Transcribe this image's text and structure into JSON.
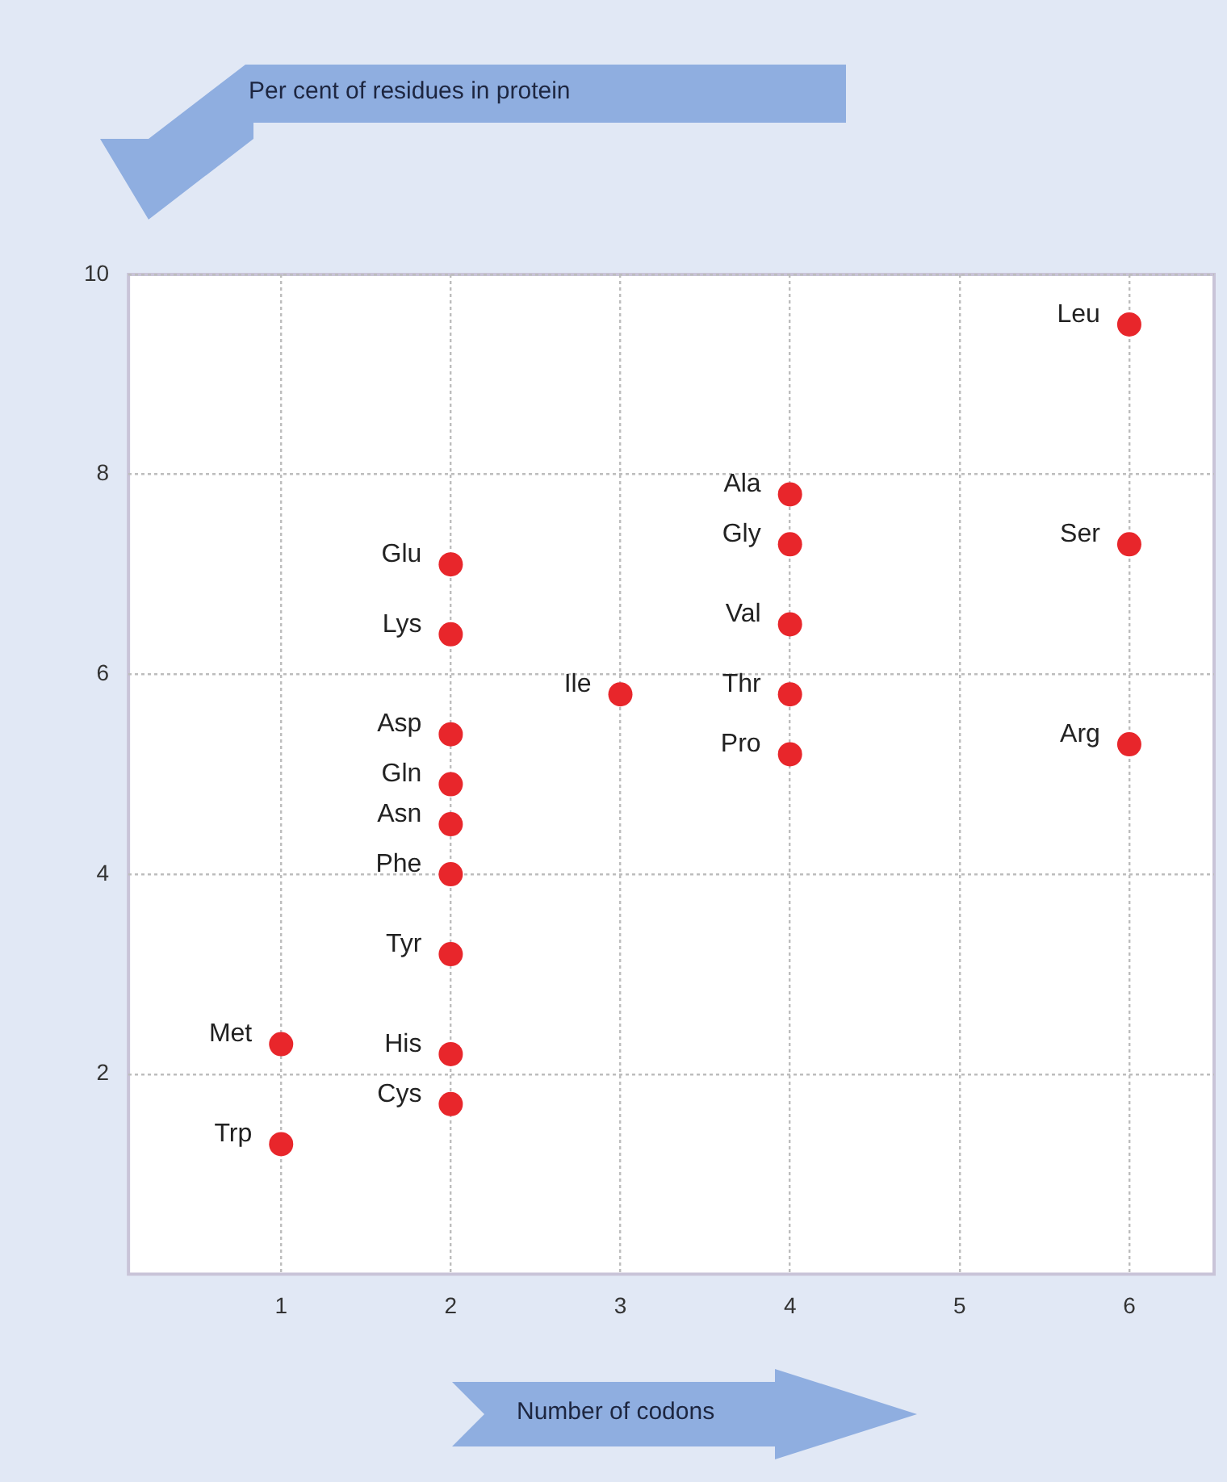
{
  "chart_data": {
    "type": "scatter",
    "xlabel": "Number of codons",
    "x": [
      6,
      4,
      4,
      6,
      2,
      4,
      2,
      3,
      4,
      2,
      6,
      4,
      2,
      2,
      2,
      2,
      1,
      2,
      2,
      1
    ],
    "series": [
      {
        "color": "#e8262b",
        "values": [
          9.5,
          7.8,
          7.3,
          7.3,
          7.1,
          6.5,
          6.4,
          5.8,
          5.8,
          5.4,
          5.3,
          5.2,
          4.9,
          4.5,
          4.0,
          3.2,
          2.3,
          2.2,
          1.7,
          1.3
        ]
      }
    ],
    "annotations": [
      "Per cent of residues in protein",
      {
        "text": "Leu",
        "x": 6,
        "y": 9.5
      },
      {
        "text": "Ala",
        "x": 4,
        "y": 7.8
      },
      {
        "text": "Gly",
        "x": 4,
        "y": 7.3
      },
      {
        "text": "Ser",
        "x": 6,
        "y": 7.3
      },
      {
        "text": "Glu",
        "x": 2,
        "y": 7.1
      },
      {
        "text": "Val",
        "x": 4,
        "y": 6.5
      },
      {
        "text": "Lys",
        "x": 2,
        "y": 6.4
      },
      {
        "text": "Ile",
        "x": 3,
        "y": 5.8
      },
      {
        "text": "Thr",
        "x": 4,
        "y": 5.8
      },
      {
        "text": "Asp",
        "x": 2,
        "y": 5.4
      },
      {
        "text": "Arg",
        "x": 6,
        "y": 5.3
      },
      {
        "text": "Pro",
        "x": 4,
        "y": 5.2
      },
      {
        "text": "Gln",
        "x": 2,
        "y": 4.9
      },
      {
        "text": "Asn",
        "x": 2,
        "y": 4.5
      },
      {
        "text": "Phe",
        "x": 2,
        "y": 4.0
      },
      {
        "text": "Tyr",
        "x": 2,
        "y": 3.2
      },
      {
        "text": "Met",
        "x": 1,
        "y": 2.3
      },
      {
        "text": "His",
        "x": 2,
        "y": 2.2
      },
      {
        "text": "Cys",
        "x": 2,
        "y": 1.7
      },
      {
        "text": "Trp",
        "x": 1,
        "y": 1.3
      }
    ],
    "xlim": [
      0.1,
      6.5
    ],
    "xticks": [
      1,
      2,
      3,
      4,
      5,
      6
    ],
    "ylim": [
      0,
      10
    ],
    "yticks": [
      2,
      4,
      6,
      8,
      10
    ],
    "grid": true,
    "marker": "circle",
    "legend": false
  }
}
